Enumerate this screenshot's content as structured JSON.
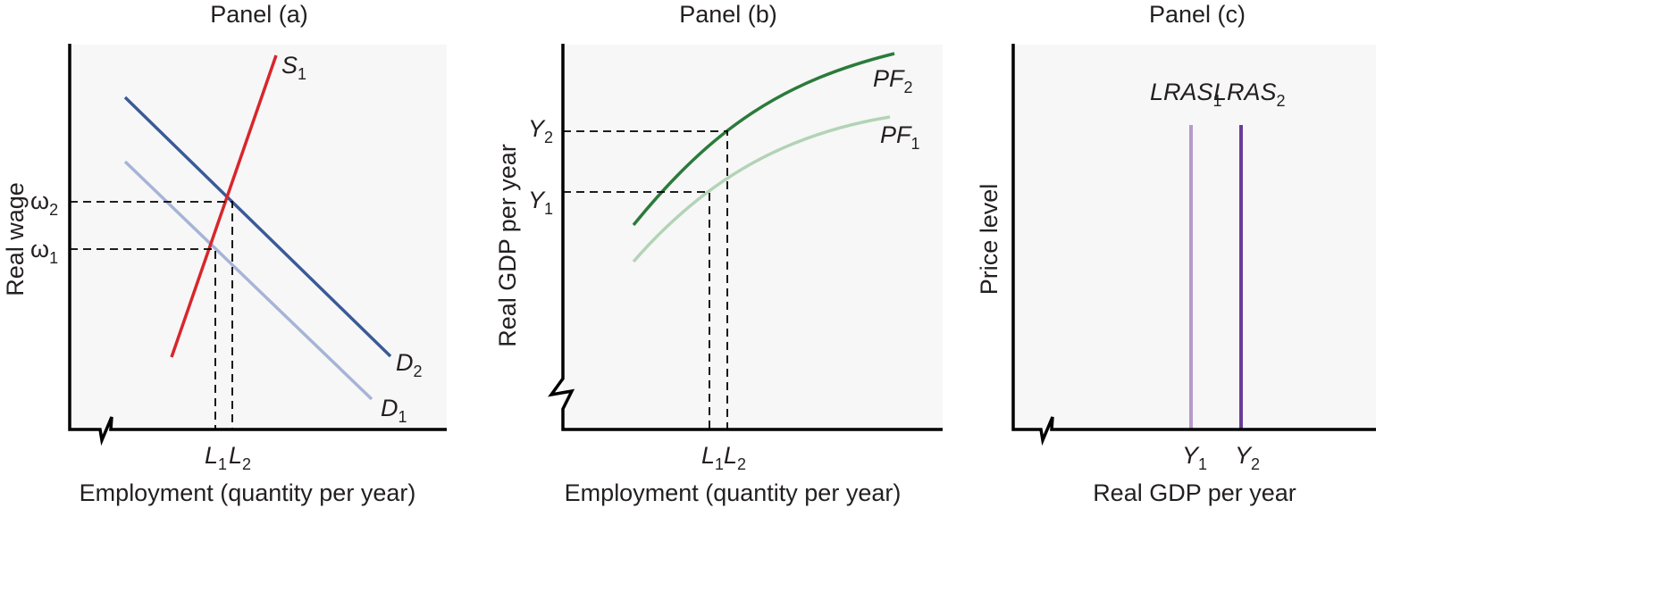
{
  "panels": [
    {
      "title": "Panel (a)",
      "xlabel": "Employment (quantity per year)",
      "ylabel": "Real wage",
      "y_ticks": [
        {
          "base": "ω",
          "sub": "2"
        },
        {
          "base": "ω",
          "sub": "1"
        }
      ],
      "x_ticks": [
        {
          "base": "L",
          "sub": "1"
        },
        {
          "base": "L",
          "sub": "2"
        }
      ],
      "curves": [
        {
          "base": "S",
          "sub": "1",
          "color": "#d8262c"
        },
        {
          "base": "D",
          "sub": "2",
          "color": "#3a5a98"
        },
        {
          "base": "D",
          "sub": "1",
          "color": "#a6b4d6"
        }
      ]
    },
    {
      "title": "Panel (b)",
      "xlabel": "Employment (quantity per year)",
      "ylabel": "Real GDP per year",
      "y_ticks": [
        {
          "base": "Y",
          "sub": "2"
        },
        {
          "base": "Y",
          "sub": "1"
        }
      ],
      "x_ticks": [
        {
          "base": "L",
          "sub": "1"
        },
        {
          "base": "L",
          "sub": "2"
        }
      ],
      "curves": [
        {
          "base": "PF",
          "sub": "2",
          "color": "#2b7b3a"
        },
        {
          "base": "PF",
          "sub": "1",
          "color": "#b3d3b6"
        }
      ]
    },
    {
      "title": "Panel (c)",
      "xlabel": "Real GDP per year",
      "ylabel": "Price level",
      "x_ticks": [
        {
          "base": "Y",
          "sub": "1"
        },
        {
          "base": "Y",
          "sub": "2"
        }
      ],
      "curves": [
        {
          "base": "LRAS",
          "sub": "1",
          "color": "#b79acb"
        },
        {
          "base": "LRAS",
          "sub": "2",
          "color": "#6a3d98"
        }
      ]
    }
  ]
}
